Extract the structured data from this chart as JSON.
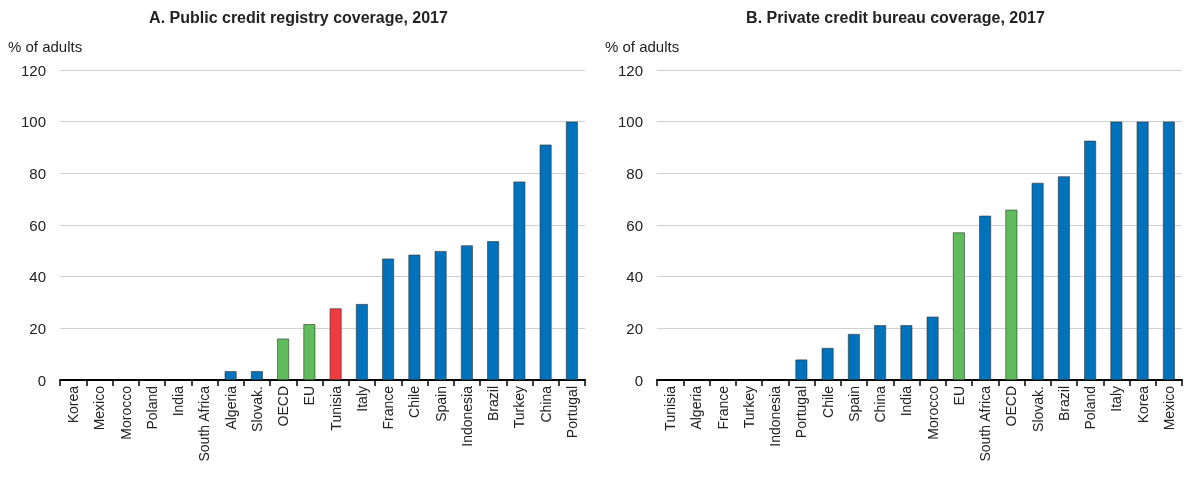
{
  "chart_data": [
    {
      "type": "bar",
      "title": "A. Public credit registry coverage, 2017",
      "ylabel": "% of adults",
      "categories": [
        "Korea",
        "Mexico",
        "Morocco",
        "Poland",
        "India",
        "South Africa",
        "Algeria",
        "Slovak.",
        "OECD",
        "EU",
        "Tunisia",
        "Italy",
        "France",
        "Chile",
        "Spain",
        "Indonesia",
        "Brazil",
        "Turkey",
        "China",
        "Portugal"
      ],
      "values": [
        0,
        0,
        0,
        0,
        0,
        0,
        3.4,
        3.4,
        16,
        21.6,
        27.7,
        29.4,
        47,
        48.5,
        49.9,
        52.1,
        53.7,
        76.8,
        91.1,
        100
      ],
      "colors": [
        "#0072bc",
        "#0072bc",
        "#0072bc",
        "#0072bc",
        "#0072bc",
        "#0072bc",
        "#0072bc",
        "#0072bc",
        "#5ebd5a",
        "#5ebd5a",
        "#ee3b3f",
        "#0072bc",
        "#0072bc",
        "#0072bc",
        "#0072bc",
        "#0072bc",
        "#0072bc",
        "#0072bc",
        "#0072bc",
        "#0072bc"
      ],
      "ylim": [
        0,
        120
      ],
      "yticks": [
        0,
        20,
        40,
        60,
        80,
        100,
        120
      ],
      "grid": "y"
    },
    {
      "type": "bar",
      "title": "B. Private credit bureau coverage, 2017",
      "ylabel": "% of adults",
      "categories": [
        "Tunisia",
        "Algeria",
        "France",
        "Turkey",
        "Indonesia",
        "Portugal",
        "Chile",
        "Spain",
        "China",
        "India",
        "Morocco",
        "EU",
        "South Africa",
        "OECD",
        "Slovak.",
        "Brazil",
        "Poland",
        "Italy",
        "Korea",
        "Mexico"
      ],
      "values": [
        0,
        0,
        0,
        0,
        0,
        7.9,
        12.4,
        17.8,
        21.2,
        21.2,
        24.5,
        57.1,
        63.6,
        65.9,
        76.3,
        78.8,
        92.6,
        100,
        100,
        100
      ],
      "colors": [
        "#0072bc",
        "#0072bc",
        "#0072bc",
        "#0072bc",
        "#0072bc",
        "#0072bc",
        "#0072bc",
        "#0072bc",
        "#0072bc",
        "#0072bc",
        "#0072bc",
        "#5ebd5a",
        "#0072bc",
        "#5ebd5a",
        "#0072bc",
        "#0072bc",
        "#0072bc",
        "#0072bc",
        "#0072bc",
        "#0072bc"
      ],
      "ylim": [
        0,
        120
      ],
      "yticks": [
        0,
        20,
        40,
        60,
        80,
        100,
        120
      ],
      "grid": "y"
    }
  ]
}
